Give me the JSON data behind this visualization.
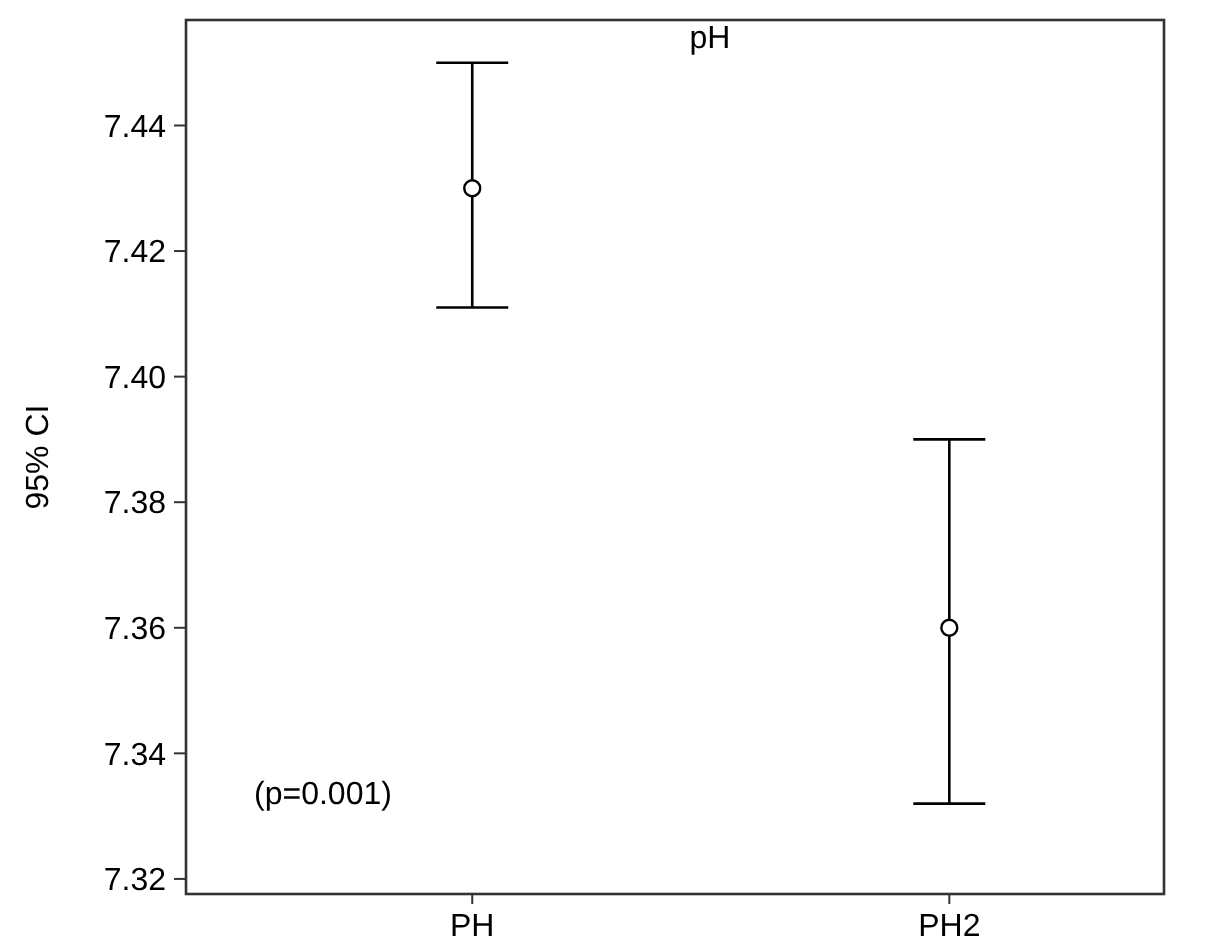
{
  "chart_data": {
    "type": "scatter",
    "title": "pH",
    "ylabel": "95% CI",
    "categories": [
      "PH",
      "PH2"
    ],
    "values": [
      7.43,
      7.36
    ],
    "errors": [
      [
        7.411,
        7.45
      ],
      [
        7.332,
        7.39
      ]
    ],
    "color": "#000000",
    "marker": "circle",
    "grid": false,
    "ylim": [
      7.3176,
      7.4568
    ],
    "yticks": [
      {
        "value": 7.32,
        "label": "7.32"
      },
      {
        "value": 7.34,
        "label": "7.34"
      },
      {
        "value": 7.36,
        "label": "7.36"
      },
      {
        "value": 7.38,
        "label": "7.38"
      },
      {
        "value": 7.4,
        "label": "7.40"
      },
      {
        "value": 7.42,
        "label": "7.42"
      },
      {
        "value": 7.44,
        "label": "7.44"
      }
    ],
    "annotations": [
      "(p=0.001)"
    ]
  }
}
